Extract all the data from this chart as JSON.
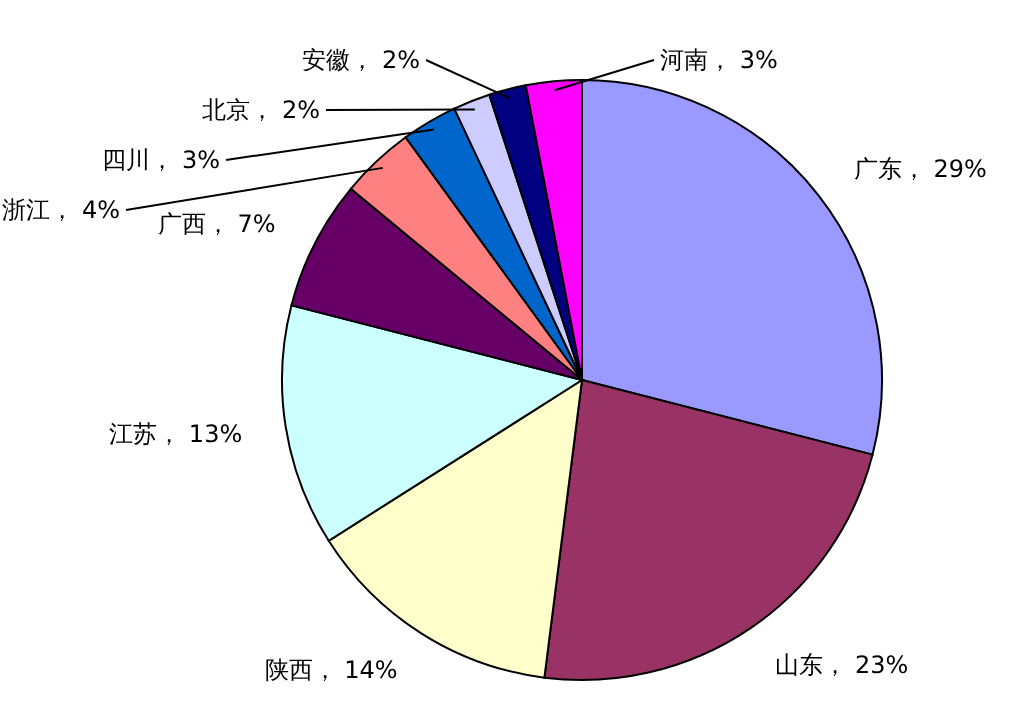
{
  "chart_data": {
    "type": "pie",
    "categories": [
      "广东",
      "山东",
      "陕西",
      "江苏",
      "广西",
      "浙江",
      "四川",
      "北京",
      "安徽",
      "河南"
    ],
    "values": [
      29,
      23,
      14,
      13,
      7,
      4,
      3,
      2,
      2,
      3
    ],
    "colors": [
      "#9999ff",
      "#993366",
      "#ffffcc",
      "#ccffff",
      "#660066",
      "#ff8080",
      "#0066cc",
      "#ccccff",
      "#000080",
      "#ff00ff"
    ],
    "value_labels": [
      "29%",
      "23%",
      "14%",
      "13%",
      "7%",
      "4%",
      "3%",
      "2%",
      "2%",
      "3%"
    ]
  }
}
